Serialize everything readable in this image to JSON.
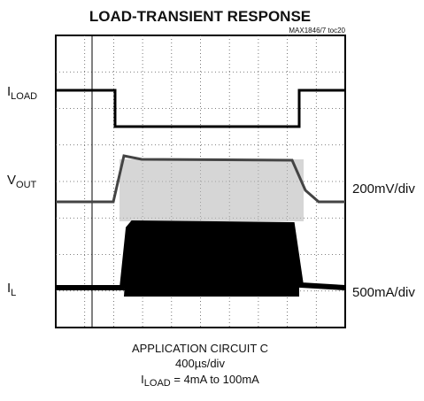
{
  "title": "LOAD-TRANSIENT RESPONSE",
  "note": "MAX1846/7 toc20",
  "traces": [
    {
      "label": {
        "main": "I",
        "sub": "LOAD"
      }
    },
    {
      "label": {
        "main": "V",
        "sub": "OUT"
      },
      "scale": "200mV/div"
    },
    {
      "label": {
        "main": "I",
        "sub": "L"
      },
      "scale": "500mA/div"
    }
  ],
  "caption": {
    "line1": "APPLICATION CIRCUIT C",
    "line2": "400µs/div",
    "line3": {
      "main": "I",
      "sub": "LOAD",
      "rest": " = 4mA to 100mA"
    }
  }
}
